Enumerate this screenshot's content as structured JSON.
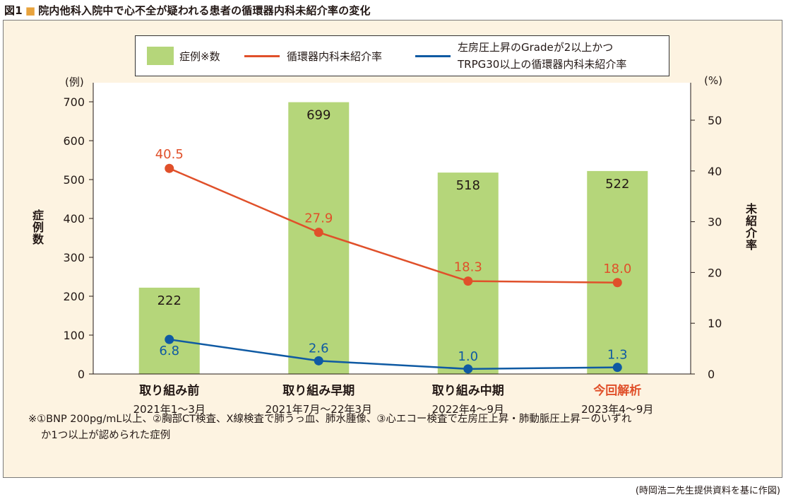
{
  "figure": {
    "number": "図1",
    "marker": "■",
    "title": "院内他科入院中で心不全が疑われる患者の循環器内科未紹介率の変化"
  },
  "colors": {
    "bar": "#b5d67a",
    "line_all": "#e0502a",
    "line_sub": "#0f5aa3",
    "highlight_category": "#e0502a",
    "panel_bg": "#fdf3e1"
  },
  "chart_data": {
    "type": "bar",
    "title": "",
    "categories": [
      "取り組み前",
      "取り組み早期",
      "取り組み中期",
      "今回解析"
    ],
    "category_periods": [
      "2021年1～3月",
      "2021年7月～22年3月",
      "2022年4～9月",
      "2023年4～9月"
    ],
    "highlight_category_index": 3,
    "y_left": {
      "label": "症例数",
      "unit": "(例)",
      "ylim": [
        0,
        700
      ],
      "ticks": [
        0,
        100,
        200,
        300,
        400,
        500,
        600,
        700
      ]
    },
    "y_right": {
      "label": "未紹介率",
      "unit": "(%)",
      "ylim": [
        0,
        55
      ],
      "ticks": [
        0,
        10,
        20,
        30,
        40,
        50
      ]
    },
    "series": [
      {
        "name": "症例※数",
        "type": "bar",
        "axis": "left",
        "values": [
          222,
          699,
          518,
          522
        ],
        "labels": [
          "222",
          "699",
          "518",
          "522"
        ]
      },
      {
        "name": "循環器内科未紹介率",
        "type": "line",
        "axis": "right",
        "values": [
          40.5,
          27.9,
          18.3,
          18.0
        ],
        "labels": [
          "40.5",
          "27.9",
          "18.3",
          "18.0"
        ]
      },
      {
        "name": "左房圧上昇のGradeが2以上かつTRPG30以上の循環器内科未紹介率",
        "name_lines": [
          "左房圧上昇のGradeが2以上かつ",
          "TRPG30以上の循環器内科未紹介率"
        ],
        "type": "line",
        "axis": "right",
        "values": [
          6.8,
          2.6,
          1.0,
          1.3
        ],
        "labels": [
          "6.8",
          "2.6",
          "1.0",
          "1.3"
        ]
      }
    ],
    "grid": false,
    "legend_position": "top"
  },
  "footnote": {
    "line1": "※①BNP 200pg/mL以上、②胸部CT検査、X線検査で肺うっ血、肺水腫像、③心エコー検査で左房圧上昇・肺動脈圧上昇－のいずれ",
    "line2": "か1つ以上が認められた症例"
  },
  "source": "(時岡浩二先生提供資料を基に作図)"
}
